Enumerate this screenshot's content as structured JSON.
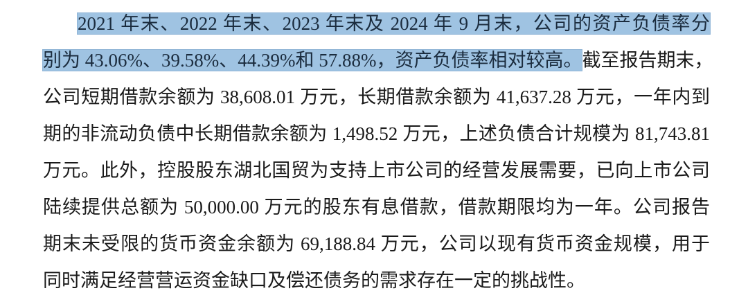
{
  "highlight_color": "#9fc3e2",
  "paragraph": {
    "line1_highlighted": "2021 年末、2022 年末、2023 年末及 2024 年 9 月末，公司的资产负债率分",
    "line2_highlighted": "别为 43.06%、39.58%、44.39%和 57.88%，资产负债率相对较高。",
    "line2_rest": "截至报告期末，",
    "line3": "公司短期借款余额为 38,608.01 万元，长期借款余额为 41,637.28 万元，一年内到",
    "line4": "期的非流动负债中长期借款余额为 1,498.52 万元，上述负债合计规模为 81,743.81",
    "line5": "万元。此外，控股股东湖北国贸为支持上市公司的经营发展需要，已向上市公司",
    "line6": "陆续提供总额为 50,000.00 万元的股东有息借款，借款期限均为一年。公司报告",
    "line7": "期末未受限的货币资金余额为 69,188.84 万元，公司以现有货币资金规模，用于",
    "line8": "同时满足经营营运资金缺口及偿还债务的需求存在一定的挑战性。"
  }
}
